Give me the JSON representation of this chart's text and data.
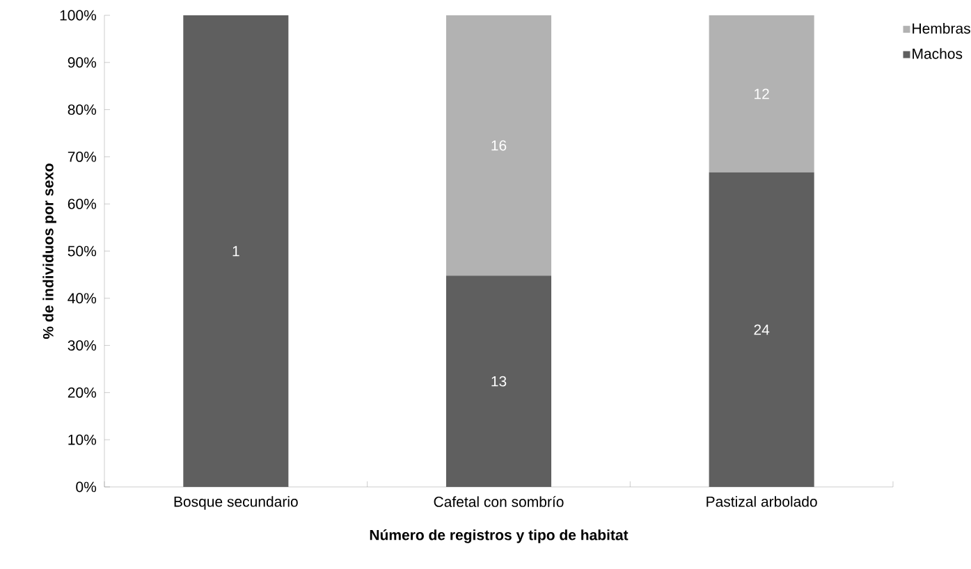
{
  "chart_data": {
    "type": "bar",
    "stacked": true,
    "xlabel": "Número de registros  y tipo de habitat",
    "ylabel": "% de individuos por sexo",
    "categories": [
      "Bosque secundario",
      "Cafetal con sombrío",
      "Pastizal arbolado"
    ],
    "series": [
      {
        "name": "Machos",
        "color": "#5f5f5f",
        "values": [
          100,
          44.8,
          66.7
        ]
      },
      {
        "name": "Hembras",
        "color": "#b2b2b2",
        "values": [
          0,
          55.2,
          33.3
        ]
      }
    ],
    "annotations": [
      "1",
      "13",
      "16",
      "24",
      "12"
    ],
    "ylim": [
      0,
      100
    ],
    "yticks": [
      {
        "value": 0,
        "label": "0%"
      },
      {
        "value": 10,
        "label": "10%"
      },
      {
        "value": 20,
        "label": "20%"
      },
      {
        "value": 30,
        "label": "30%"
      },
      {
        "value": 40,
        "label": "40%"
      },
      {
        "value": 50,
        "label": "50%"
      },
      {
        "value": 60,
        "label": "60%"
      },
      {
        "value": 70,
        "label": "70%"
      },
      {
        "value": 80,
        "label": "80%"
      },
      {
        "value": 90,
        "label": "90%"
      },
      {
        "value": 100,
        "label": "100%"
      }
    ],
    "legend": "top right",
    "grid": false
  }
}
